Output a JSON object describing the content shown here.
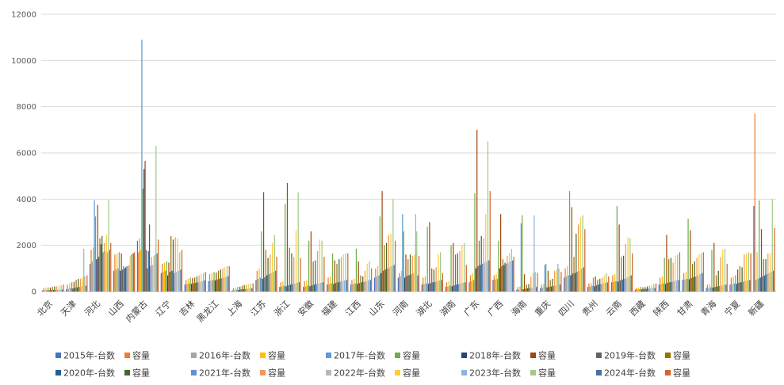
{
  "chart_data": {
    "type": "bar",
    "title": "",
    "xlabel": "",
    "ylabel": "",
    "ylim": [
      0,
      12000
    ],
    "yticks": [
      0,
      2000,
      4000,
      6000,
      8000,
      10000,
      12000
    ],
    "grid": "horizontal",
    "legend_position": "bottom",
    "categories": [
      "北京",
      "天津",
      "河北",
      "山西",
      "内蒙古",
      "辽宁",
      "吉林",
      "黑龙江",
      "上海",
      "江苏",
      "浙江",
      "安徽",
      "福建",
      "江西",
      "山东",
      "河南",
      "湖北",
      "湖南",
      "广东",
      "广西",
      "海南",
      "重庆",
      "四川",
      "贵州",
      "云南",
      "西藏",
      "陕西",
      "甘肃",
      "青海",
      "宁夏",
      "新疆"
    ],
    "series": [
      {
        "name": "2015年-台数",
        "color": "#4472C4",
        "values": [
          50,
          100,
          1200,
          900,
          2200,
          800,
          300,
          450,
          50,
          500,
          200,
          200,
          300,
          300,
          600,
          600,
          300,
          200,
          400,
          500,
          80,
          150,
          600,
          200,
          400,
          80,
          300,
          500,
          150,
          300,
          3700
        ]
      },
      {
        "name": "容量",
        "color": "#ED7D31",
        "values": [
          150,
          300,
          1800,
          1600,
          1700,
          1200,
          500,
          750,
          150,
          900,
          400,
          450,
          600,
          500,
          1000,
          800,
          600,
          400,
          700,
          700,
          200,
          300,
          1000,
          350,
          700,
          150,
          600,
          800,
          300,
          600,
          7700
        ]
      },
      {
        "name": "2016年-台数",
        "color": "#A5A5A5",
        "values": [
          50,
          120,
          1300,
          950,
          2300,
          850,
          320,
          470,
          60,
          550,
          220,
          220,
          320,
          320,
          650,
          650,
          320,
          220,
          450,
          520,
          90,
          160,
          650,
          220,
          420,
          90,
          320,
          520,
          160,
          320,
          500
        ]
      },
      {
        "name": "容量",
        "color": "#FFC000",
        "values": [
          150,
          350,
          1900,
          1650,
          1800,
          1250,
          550,
          800,
          170,
          1000,
          450,
          480,
          650,
          550,
          1100,
          900,
          650,
          450,
          800,
          750,
          220,
          330,
          1100,
          380,
          750,
          170,
          650,
          850,
          330,
          650,
          1700
        ]
      },
      {
        "name": "2017年-台数",
        "color": "#5B9BD5",
        "values": [
          60,
          150,
          3950,
          1000,
          10900,
          900,
          350,
          500,
          80,
          600,
          250,
          250,
          350,
          350,
          700,
          3350,
          350,
          250,
          500,
          550,
          2950,
          1150,
          700,
          250,
          450,
          100,
          350,
          550,
          180,
          350,
          550
        ]
      },
      {
        "name": "容量",
        "color": "#70AD47",
        "values": [
          180,
          400,
          3250,
          1700,
          4450,
          1300,
          600,
          850,
          200,
          2600,
          3800,
          2200,
          1650,
          1850,
          3250,
          2600,
          2800,
          2000,
          4250,
          2200,
          3300,
          1200,
          4350,
          600,
          3700,
          200,
          1450,
          3150,
          1800,
          700,
          3950
        ]
      },
      {
        "name": "2018年-台数",
        "color": "#264478",
        "values": [
          50,
          130,
          1400,
          900,
          5300,
          700,
          330,
          480,
          70,
          550,
          230,
          230,
          330,
          330,
          800,
          600,
          330,
          230,
          1000,
          1000,
          100,
          180,
          700,
          230,
          430,
          90,
          330,
          530,
          170,
          330,
          600
        ]
      },
      {
        "name": "容量",
        "color": "#9E480E",
        "values": [
          170,
          420,
          3750,
          1650,
          5650,
          1250,
          580,
          820,
          210,
          4300,
          4700,
          2600,
          1350,
          1300,
          4350,
          1600,
          3000,
          2100,
          7000,
          3350,
          750,
          900,
          3650,
          650,
          2900,
          180,
          2450,
          2650,
          2100,
          950,
          2700
        ]
      },
      {
        "name": "2019年-台数",
        "color": "#636363",
        "values": [
          60,
          160,
          1500,
          950,
          1800,
          850,
          360,
          520,
          90,
          620,
          270,
          270,
          370,
          370,
          900,
          680,
          370,
          270,
          1100,
          1100,
          120,
          200,
          780,
          270,
          480,
          100,
          380,
          580,
          200,
          380,
          650
        ]
      },
      {
        "name": "容量",
        "color": "#997300",
        "values": [
          200,
          500,
          2300,
          1100,
          1000,
          2400,
          600,
          900,
          250,
          1800,
          1900,
          1300,
          1200,
          700,
          2000,
          1400,
          1000,
          1600,
          2200,
          1400,
          300,
          500,
          1500,
          500,
          1500,
          200,
          1400,
          1200,
          700,
          1100,
          1400
        ]
      },
      {
        "name": "2020年-台数",
        "color": "#255E91",
        "values": [
          70,
          180,
          2050,
          1000,
          1750,
          900,
          380,
          550,
          100,
          700,
          300,
          300,
          400,
          400,
          950,
          700,
          400,
          300,
          1150,
          1150,
          140,
          220,
          800,
          300,
          520,
          120,
          400,
          620,
          220,
          400,
          700
        ]
      },
      {
        "name": "容量",
        "color": "#43682B",
        "values": [
          220,
          550,
          2400,
          1050,
          2900,
          2250,
          650,
          950,
          280,
          1450,
          1650,
          1350,
          1400,
          650,
          2100,
          1600,
          950,
          1650,
          2400,
          1250,
          320,
          550,
          2500,
          550,
          1550,
          220,
          1450,
          1300,
          900,
          1050,
          1400
        ]
      },
      {
        "name": "2021年-台数",
        "color": "#698ED0",
        "values": [
          70,
          200,
          1700,
          1100,
          1100,
          800,
          400,
          580,
          110,
          750,
          320,
          320,
          420,
          420,
          1000,
          750,
          420,
          320,
          1200,
          1200,
          150,
          240,
          850,
          320,
          550,
          130,
          420,
          650,
          240,
          420,
          750
        ]
      },
      {
        "name": "容量",
        "color": "#F1975A",
        "values": [
          230,
          560,
          2100,
          1100,
          1500,
          2350,
          700,
          1000,
          300,
          1600,
          1500,
          1750,
          1500,
          900,
          2450,
          1550,
          1050,
          1750,
          2300,
          1550,
          650,
          900,
          2900,
          600,
          2050,
          250,
          1250,
          1450,
          1500,
          1600,
          1650
        ]
      },
      {
        "name": "2022年-台数",
        "color": "#B7B7B7",
        "values": [
          80,
          220,
          1750,
          1150,
          1150,
          850,
          420,
          600,
          120,
          800,
          350,
          350,
          450,
          450,
          1050,
          800,
          450,
          350,
          1250,
          1250,
          170,
          260,
          900,
          350,
          600,
          140,
          450,
          700,
          260,
          450,
          800
        ]
      },
      {
        "name": "容量",
        "color": "#FFCD33",
        "values": [
          250,
          600,
          2450,
          1550,
          1550,
          2300,
          750,
          1050,
          320,
          2100,
          2650,
          2250,
          1600,
          1200,
          2500,
          1600,
          1600,
          2000,
          3350,
          1650,
          800,
          950,
          3200,
          700,
          2350,
          300,
          1550,
          1600,
          1800,
          1650,
          1650
        ]
      },
      {
        "name": "2023年-台数",
        "color": "#8CB4DF",
        "values": [
          80,
          1850,
          1700,
          1600,
          1600,
          900,
          450,
          630,
          130,
          850,
          380,
          380,
          480,
          480,
          1100,
          3350,
          480,
          380,
          1300,
          1300,
          3300,
          1200,
          1000,
          380,
          650,
          150,
          480,
          750,
          280,
          480,
          850
        ]
      },
      {
        "name": "容量",
        "color": "#A1C98A",
        "values": [
          270,
          650,
          3950,
          1650,
          6300,
          1700,
          800,
          1100,
          340,
          2450,
          4300,
          2200,
          1650,
          1300,
          4000,
          2600,
          1700,
          2100,
          6500,
          1850,
          850,
          1000,
          3300,
          800,
          2300,
          330,
          1600,
          1650,
          1850,
          1700,
          4000
        ]
      },
      {
        "name": "2024年-台数",
        "color": "#4A6FA5",
        "values": [
          90,
          250,
          1800,
          1650,
          1650,
          950,
          480,
          660,
          140,
          900,
          400,
          400,
          500,
          500,
          1150,
          700,
          500,
          400,
          1350,
          1350,
          200,
          300,
          1050,
          400,
          700,
          160,
          500,
          800,
          300,
          500,
          900
        ]
      },
      {
        "name": "容量",
        "color": "#D5652A",
        "values": [
          300,
          700,
          2100,
          1700,
          2250,
          1800,
          850,
          1100,
          360,
          1500,
          1450,
          1500,
          1650,
          1000,
          2200,
          1550,
          800,
          1150,
          4350,
          1500,
          800,
          850,
          2700,
          650,
          1650,
          350,
          1700,
          1700,
          1200,
          1650,
          2750
        ]
      }
    ]
  }
}
